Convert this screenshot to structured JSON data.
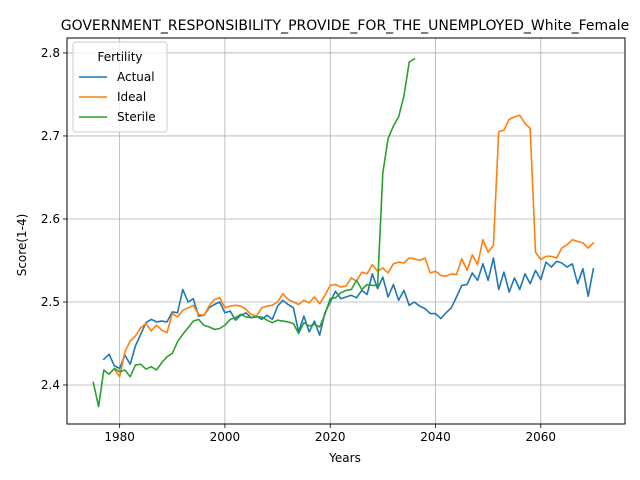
{
  "chart_data": {
    "type": "line",
    "title": "GOVERNMENT_RESPONSIBILITY_PROVIDE_FOR_THE_UNEMPLOYED_White_Female",
    "xlabel": "Years",
    "ylabel": "Score(1-4)",
    "xlim": [
      1970,
      2076
    ],
    "ylim": [
      2.353,
      2.818
    ],
    "xticks": [
      1980,
      2000,
      2020,
      2040,
      2060
    ],
    "yticks": [
      2.4,
      2.5,
      2.6,
      2.7,
      2.8
    ],
    "grid": true,
    "legend": {
      "title": "Fertility",
      "position": "top-left"
    },
    "series": [
      {
        "name": "Actual",
        "color": "#1f77b4",
        "x": [
          1977,
          1978,
          1979,
          1980,
          1981,
          1982,
          1983,
          1984,
          1985,
          1986,
          1987,
          1988,
          1989,
          1990,
          1991,
          1992,
          1993,
          1994,
          1995,
          1996,
          1997,
          1998,
          1999,
          2000,
          2001,
          2002,
          2003,
          2004,
          2005,
          2006,
          2007,
          2008,
          2009,
          2010,
          2011,
          2012,
          2013,
          2014,
          2015,
          2016,
          2017,
          2018,
          2019,
          2020,
          2021,
          2022,
          2023,
          2024,
          2025,
          2026,
          2027,
          2028,
          2029,
          2030,
          2031,
          2032,
          2033,
          2034,
          2035,
          2036,
          2037,
          2038,
          2039,
          2040,
          2041,
          2042,
          2043,
          2044,
          2045,
          2046,
          2047,
          2048,
          2049,
          2050,
          2051,
          2052,
          2053,
          2054,
          2055,
          2056,
          2057,
          2058,
          2059,
          2060,
          2061,
          2062,
          2063,
          2064,
          2065,
          2066,
          2067,
          2068,
          2069,
          2070
        ],
        "y": [
          2.431,
          2.437,
          2.423,
          2.42,
          2.436,
          2.425,
          2.447,
          2.461,
          2.475,
          2.479,
          2.476,
          2.477,
          2.476,
          2.488,
          2.487,
          2.515,
          2.5,
          2.504,
          2.483,
          2.484,
          2.493,
          2.497,
          2.5,
          2.487,
          2.489,
          2.478,
          2.484,
          2.487,
          2.481,
          2.483,
          2.479,
          2.484,
          2.479,
          2.495,
          2.502,
          2.497,
          2.493,
          2.464,
          2.483,
          2.464,
          2.477,
          2.46,
          2.487,
          2.5,
          2.513,
          2.504,
          2.506,
          2.508,
          2.505,
          2.514,
          2.509,
          2.534,
          2.516,
          2.53,
          2.506,
          2.521,
          2.502,
          2.514,
          2.496,
          2.5,
          2.495,
          2.492,
          2.486,
          2.486,
          2.48,
          2.487,
          2.493,
          2.506,
          2.52,
          2.521,
          2.535,
          2.526,
          2.546,
          2.526,
          2.553,
          2.515,
          2.536,
          2.512,
          2.529,
          2.515,
          2.534,
          2.522,
          2.538,
          2.527,
          2.548,
          2.542,
          2.549,
          2.547,
          2.542,
          2.546,
          2.522,
          2.54,
          2.507,
          2.54
        ]
      },
      {
        "name": "Ideal",
        "color": "#ff7f0e",
        "x": [
          1979,
          1980,
          1981,
          1982,
          1983,
          1984,
          1985,
          1986,
          1987,
          1988,
          1989,
          1990,
          1991,
          1992,
          1993,
          1994,
          1995,
          1996,
          1997,
          1998,
          1999,
          2000,
          2001,
          2002,
          2003,
          2004,
          2005,
          2006,
          2007,
          2008,
          2009,
          2010,
          2011,
          2012,
          2013,
          2014,
          2015,
          2016,
          2017,
          2018,
          2019,
          2020,
          2021,
          2022,
          2023,
          2024,
          2025,
          2026,
          2027,
          2028,
          2029,
          2030,
          2031,
          2032,
          2033,
          2034,
          2035,
          2036,
          2037,
          2038,
          2039,
          2040,
          2041,
          2042,
          2043,
          2044,
          2045,
          2046,
          2047,
          2048,
          2049,
          2050,
          2051,
          2052,
          2053,
          2054,
          2055,
          2056,
          2057,
          2058,
          2059,
          2060,
          2061,
          2062,
          2063,
          2064,
          2065,
          2066,
          2067,
          2068,
          2069,
          2070
        ],
        "y": [
          2.419,
          2.41,
          2.44,
          2.453,
          2.459,
          2.469,
          2.474,
          2.465,
          2.472,
          2.466,
          2.463,
          2.486,
          2.482,
          2.49,
          2.493,
          2.496,
          2.485,
          2.484,
          2.495,
          2.503,
          2.505,
          2.493,
          2.495,
          2.496,
          2.495,
          2.491,
          2.485,
          2.483,
          2.493,
          2.495,
          2.496,
          2.5,
          2.51,
          2.503,
          2.5,
          2.497,
          2.502,
          2.499,
          2.506,
          2.498,
          2.508,
          2.52,
          2.521,
          2.518,
          2.519,
          2.529,
          2.525,
          2.536,
          2.534,
          2.545,
          2.537,
          2.541,
          2.535,
          2.546,
          2.548,
          2.547,
          2.553,
          2.552,
          2.55,
          2.553,
          2.535,
          2.537,
          2.532,
          2.531,
          2.534,
          2.533,
          2.552,
          2.538,
          2.557,
          2.545,
          2.575,
          2.56,
          2.568,
          2.705,
          2.707,
          2.72,
          2.723,
          2.725,
          2.715,
          2.709,
          2.56,
          2.551,
          2.555,
          2.555,
          2.553,
          2.565,
          2.569,
          2.575,
          2.573,
          2.571,
          2.565,
          2.571
        ]
      },
      {
        "name": "Sterile",
        "color": "#2ca02c",
        "x": [
          1975,
          1976,
          1977,
          1978,
          1979,
          1980,
          1981,
          1982,
          1983,
          1984,
          1985,
          1986,
          1987,
          1988,
          1989,
          1990,
          1991,
          1992,
          1993,
          1994,
          1995,
          1996,
          1997,
          1998,
          1999,
          2000,
          2001,
          2002,
          2003,
          2004,
          2005,
          2006,
          2007,
          2008,
          2009,
          2010,
          2011,
          2012,
          2013,
          2014,
          2015,
          2016,
          2017,
          2018,
          2019,
          2020,
          2021,
          2022,
          2023,
          2024,
          2025,
          2026,
          2027,
          2028,
          2029,
          2030,
          2031,
          2032,
          2033,
          2034,
          2035,
          2036
        ],
        "y": [
          2.403,
          2.374,
          2.418,
          2.413,
          2.42,
          2.416,
          2.418,
          2.41,
          2.424,
          2.425,
          2.419,
          2.422,
          2.418,
          2.427,
          2.434,
          2.438,
          2.452,
          2.461,
          2.469,
          2.477,
          2.479,
          2.472,
          2.47,
          2.467,
          2.468,
          2.472,
          2.479,
          2.481,
          2.485,
          2.482,
          2.481,
          2.482,
          2.482,
          2.478,
          2.475,
          2.478,
          2.477,
          2.476,
          2.474,
          2.462,
          2.475,
          2.471,
          2.473,
          2.47,
          2.485,
          2.504,
          2.505,
          2.511,
          2.514,
          2.515,
          2.526,
          2.515,
          2.521,
          2.52,
          2.52,
          2.655,
          2.697,
          2.712,
          2.723,
          2.748,
          2.789,
          2.793
        ]
      }
    ]
  }
}
